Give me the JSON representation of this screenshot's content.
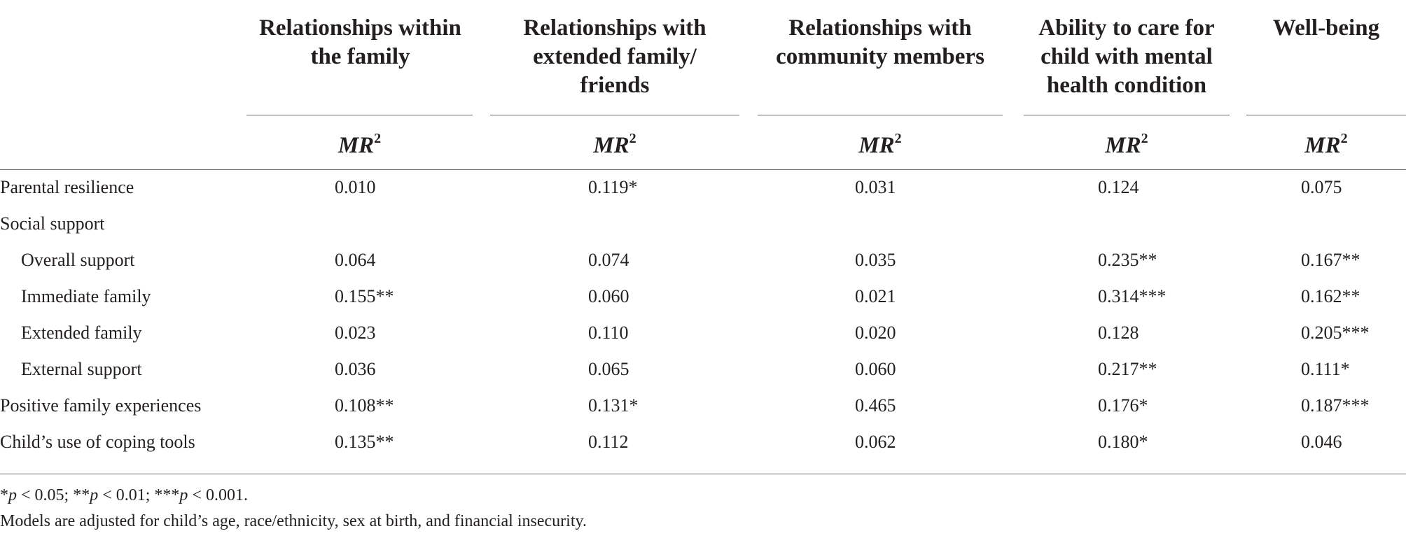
{
  "columns": [
    {
      "header": "Relationships within\nthe family",
      "subheader": "MR",
      "sup": "2"
    },
    {
      "header": "Relationships with\nextended family/\nfriends",
      "subheader": "MR",
      "sup": "2"
    },
    {
      "header": "Relationships with\ncommunity members",
      "subheader": "MR",
      "sup": "2"
    },
    {
      "header": "Ability to care for\nchild with mental\nhealth condition",
      "subheader": "MR",
      "sup": "2"
    },
    {
      "header": "Well-being",
      "subheader": "MR",
      "sup": "2"
    }
  ],
  "rows": [
    {
      "label": "Parental resilience",
      "values": [
        "0.010",
        "0.119*",
        "0.031",
        "0.124",
        "0.075"
      ]
    },
    {
      "label": "Social support",
      "values": [
        "",
        "",
        "",
        "",
        ""
      ]
    },
    {
      "label": "Overall support",
      "values": [
        "0.064",
        "0.074",
        "0.035",
        "0.235**",
        "0.167**"
      ]
    },
    {
      "label": "Immediate family",
      "values": [
        "0.155**",
        "0.060",
        "0.021",
        "0.314***",
        "0.162**"
      ]
    },
    {
      "label": "Extended family",
      "values": [
        "0.023",
        "0.110",
        "0.020",
        "0.128",
        "0.205***"
      ]
    },
    {
      "label": "External support",
      "values": [
        "0.036",
        "0.065",
        "0.060",
        "0.217**",
        "0.111*"
      ]
    },
    {
      "label": "Positive family experiences",
      "values": [
        "0.108**",
        "0.131*",
        "0.465",
        "0.176*",
        "0.187***"
      ]
    },
    {
      "label": "Child’s use of coping tools",
      "values": [
        "0.135**",
        "0.112",
        "0.062",
        "0.180*",
        "0.046"
      ]
    }
  ],
  "notes": {
    "significance": {
      "p1_prefix": "*",
      "p1_sym": "p",
      "p1_val": " < 0.05; ",
      "p2_prefix": "**",
      "p2_sym": "p",
      "p2_val": " < 0.01; ",
      "p3_prefix": "***",
      "p3_sym": "p",
      "p3_val": " < 0.001."
    },
    "adjustment": "Models are adjusted for child’s age, race/ethnicity, sex at birth, and financial insecurity."
  }
}
